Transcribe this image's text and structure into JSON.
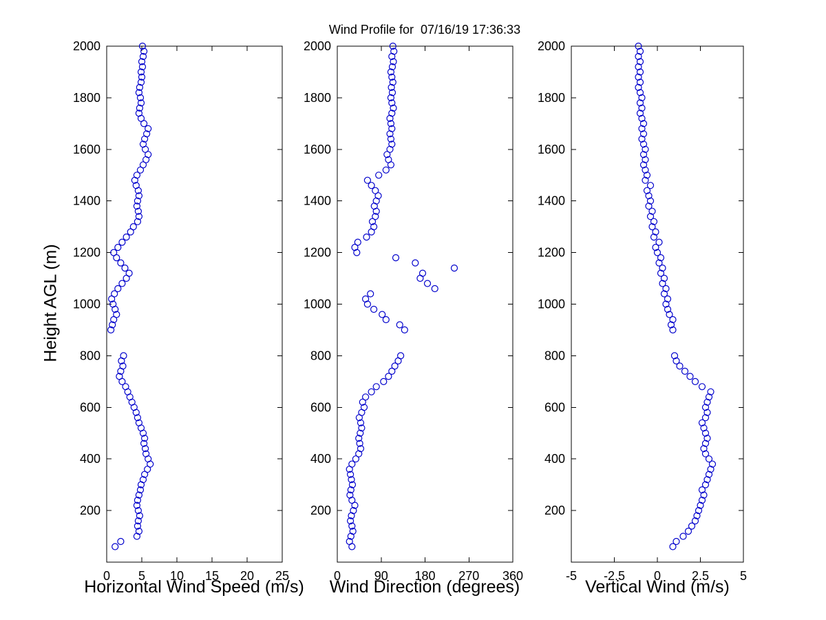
{
  "title": "Wind Profile for  07/16/19 17:36:33",
  "colors": {
    "marker": "#0000cc",
    "axis": "#000000",
    "background": "#ffffff"
  },
  "y_axis": {
    "label": "Height AGL (m)",
    "lim": [
      0,
      2000
    ],
    "ticks": [
      200,
      400,
      600,
      800,
      1000,
      1200,
      1400,
      1600,
      1800,
      2000
    ]
  },
  "chart_data": [
    {
      "type": "scatter",
      "xlabel": "Horizontal Wind Speed (m/s)",
      "ylabel": "Height AGL (m)",
      "xlim": [
        0,
        25
      ],
      "xticks": [
        0,
        5,
        10,
        15,
        20,
        25
      ],
      "ylim": [
        0,
        2000
      ],
      "marker": "open-circle",
      "x": [
        1.2,
        2.0,
        4.3,
        4.6,
        4.4,
        4.5,
        4.7,
        4.5,
        4.3,
        4.4,
        4.6,
        4.8,
        4.9,
        5.2,
        5.4,
        5.8,
        6.2,
        5.9,
        5.6,
        5.5,
        5.3,
        5.4,
        5.2,
        4.9,
        4.6,
        4.4,
        4.2,
        3.9,
        3.6,
        3.3,
        3.0,
        2.7,
        2.2,
        1.8,
        2.0,
        2.3,
        2.1,
        2.4,
        0.6,
        0.8,
        1.0,
        1.4,
        1.2,
        0.9,
        0.7,
        1.1,
        1.6,
        2.2,
        2.8,
        3.2,
        2.6,
        2.0,
        1.4,
        1.0,
        1.6,
        2.2,
        2.8,
        3.4,
        3.8,
        4.4,
        4.6,
        4.5,
        4.3,
        4.4,
        4.6,
        4.5,
        4.2,
        4.0,
        4.3,
        4.8,
        5.2,
        5.6,
        5.9,
        5.5,
        5.2,
        5.4,
        5.7,
        5.9,
        5.3,
        4.9,
        4.6,
        4.7,
        4.9,
        4.8,
        4.6,
        4.7,
        4.9,
        5.0,
        4.9,
        5.1,
        5.0,
        5.2,
        5.3,
        5.1
      ],
      "y": [
        60,
        80,
        100,
        120,
        140,
        160,
        180,
        200,
        220,
        240,
        260,
        280,
        300,
        320,
        340,
        360,
        380,
        400,
        420,
        440,
        460,
        480,
        500,
        520,
        540,
        560,
        580,
        600,
        620,
        640,
        660,
        680,
        700,
        720,
        740,
        760,
        780,
        800,
        900,
        920,
        940,
        960,
        980,
        1000,
        1020,
        1040,
        1060,
        1080,
        1100,
        1120,
        1140,
        1160,
        1180,
        1200,
        1220,
        1240,
        1260,
        1280,
        1300,
        1320,
        1340,
        1360,
        1380,
        1400,
        1420,
        1440,
        1460,
        1480,
        1500,
        1520,
        1540,
        1560,
        1580,
        1600,
        1620,
        1640,
        1660,
        1680,
        1700,
        1720,
        1740,
        1760,
        1780,
        1800,
        1820,
        1840,
        1860,
        1880,
        1900,
        1920,
        1940,
        1960,
        1980,
        2000
      ]
    },
    {
      "type": "scatter",
      "xlabel": "Wind Direction (degrees)",
      "ylabel": "Height AGL (m)",
      "xlim": [
        0,
        360
      ],
      "xticks": [
        0,
        90,
        180,
        270,
        360
      ],
      "ylim": [
        0,
        2000
      ],
      "marker": "open-circle",
      "x": [
        30,
        25,
        28,
        32,
        30,
        27,
        29,
        33,
        36,
        30,
        26,
        28,
        31,
        29,
        27,
        25,
        30,
        38,
        44,
        48,
        46,
        44,
        47,
        50,
        48,
        45,
        50,
        55,
        52,
        58,
        70,
        80,
        95,
        105,
        112,
        118,
        125,
        130,
        138,
        128,
        100,
        92,
        75,
        62,
        58,
        68,
        200,
        185,
        170,
        175,
        240,
        160,
        120,
        40,
        36,
        42,
        60,
        70,
        75,
        72,
        78,
        80,
        76,
        80,
        84,
        78,
        70,
        62,
        85,
        100,
        110,
        105,
        102,
        108,
        112,
        110,
        108,
        112,
        110,
        108,
        112,
        115,
        112,
        110,
        113,
        111,
        114,
        112,
        110,
        113,
        115,
        112,
        116,
        114
      ],
      "y": [
        60,
        80,
        100,
        120,
        140,
        160,
        180,
        200,
        220,
        240,
        260,
        280,
        300,
        320,
        340,
        360,
        380,
        400,
        420,
        440,
        460,
        480,
        500,
        520,
        540,
        560,
        580,
        600,
        620,
        640,
        660,
        680,
        700,
        720,
        740,
        760,
        780,
        800,
        900,
        920,
        940,
        960,
        980,
        1000,
        1020,
        1040,
        1060,
        1080,
        1100,
        1120,
        1140,
        1160,
        1180,
        1200,
        1220,
        1240,
        1260,
        1280,
        1300,
        1320,
        1340,
        1360,
        1380,
        1400,
        1420,
        1440,
        1460,
        1480,
        1500,
        1520,
        1540,
        1560,
        1580,
        1600,
        1620,
        1640,
        1660,
        1680,
        1700,
        1720,
        1740,
        1760,
        1780,
        1800,
        1820,
        1840,
        1860,
        1880,
        1900,
        1920,
        1940,
        1960,
        1980,
        2000
      ]
    },
    {
      "type": "scatter",
      "xlabel": "Vertical Wind (m/s)",
      "ylabel": "Height AGL (m)",
      "xlim": [
        -5,
        5
      ],
      "xticks": [
        -5,
        -2.5,
        0,
        2.5,
        5
      ],
      "ylim": [
        0,
        2000
      ],
      "marker": "open-circle",
      "x": [
        0.9,
        1.1,
        1.5,
        1.8,
        2.0,
        2.2,
        2.3,
        2.4,
        2.5,
        2.6,
        2.7,
        2.6,
        2.8,
        2.9,
        3.0,
        3.1,
        3.2,
        3.0,
        2.8,
        2.7,
        2.8,
        2.9,
        2.8,
        2.7,
        2.6,
        2.8,
        2.9,
        2.8,
        2.9,
        3.0,
        3.1,
        2.6,
        2.2,
        1.9,
        1.6,
        1.3,
        1.1,
        1.0,
        0.9,
        0.8,
        0.9,
        0.7,
        0.6,
        0.5,
        0.6,
        0.4,
        0.5,
        0.3,
        0.4,
        0.2,
        0.3,
        0.1,
        0.2,
        0.0,
        -0.1,
        0.1,
        -0.2,
        -0.1,
        -0.3,
        -0.2,
        -0.4,
        -0.3,
        -0.5,
        -0.4,
        -0.5,
        -0.6,
        -0.4,
        -0.7,
        -0.6,
        -0.7,
        -0.8,
        -0.7,
        -0.8,
        -0.7,
        -0.8,
        -0.9,
        -0.8,
        -0.9,
        -0.8,
        -0.9,
        -1.0,
        -0.9,
        -1.0,
        -0.9,
        -1.0,
        -1.1,
        -1.0,
        -1.1,
        -1.0,
        -1.1,
        -1.0,
        -1.1,
        -1.0,
        -1.1
      ],
      "y": [
        60,
        80,
        100,
        120,
        140,
        160,
        180,
        200,
        220,
        240,
        260,
        280,
        300,
        320,
        340,
        360,
        380,
        400,
        420,
        440,
        460,
        480,
        500,
        520,
        540,
        560,
        580,
        600,
        620,
        640,
        660,
        680,
        700,
        720,
        740,
        760,
        780,
        800,
        900,
        920,
        940,
        960,
        980,
        1000,
        1020,
        1040,
        1060,
        1080,
        1100,
        1120,
        1140,
        1160,
        1180,
        1200,
        1220,
        1240,
        1260,
        1280,
        1300,
        1320,
        1340,
        1360,
        1380,
        1400,
        1420,
        1440,
        1460,
        1480,
        1500,
        1520,
        1540,
        1560,
        1580,
        1600,
        1620,
        1640,
        1660,
        1680,
        1700,
        1720,
        1740,
        1760,
        1780,
        1800,
        1820,
        1840,
        1860,
        1880,
        1900,
        1920,
        1940,
        1960,
        1980,
        2000
      ]
    }
  ]
}
